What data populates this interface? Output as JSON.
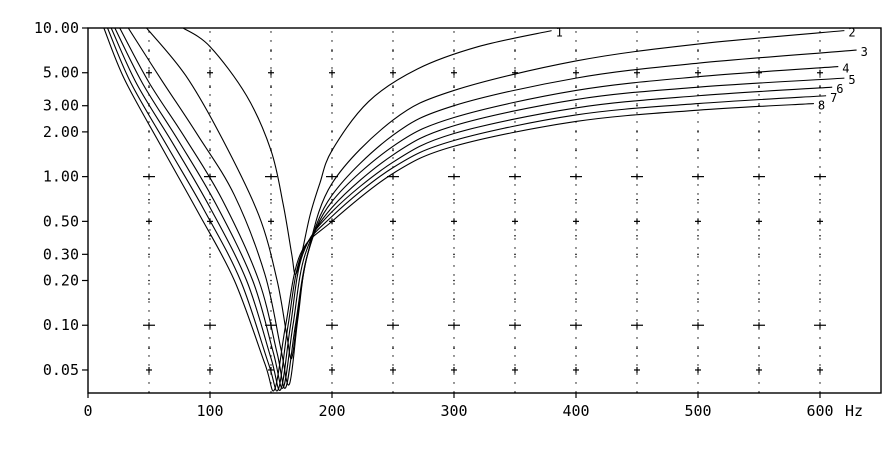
{
  "chart_data": {
    "type": "line",
    "title": "",
    "xlabel": "",
    "ylabel": "",
    "x_unit": "Hz",
    "xlim": [
      0,
      650
    ],
    "ylim": [
      0.035,
      10
    ],
    "y_scale": "log",
    "grid": "dotted",
    "x_ticks": [
      0,
      100,
      200,
      300,
      400,
      500,
      600
    ],
    "x_tick_labels": [
      "0",
      "100",
      "200",
      "300",
      "400",
      "500",
      "600"
    ],
    "y_ticks": [
      10,
      5,
      3,
      2,
      1,
      0.5,
      0.3,
      0.2,
      0.1,
      0.05
    ],
    "y_tick_labels": [
      "10.00",
      "5.00",
      "3.00",
      "2.00",
      "1.00",
      "0.50",
      "0.30",
      "0.20",
      "0.10",
      "0.05"
    ],
    "series": [
      {
        "name": "1",
        "x": [
          78,
          100,
          130,
          150,
          160,
          167,
          170,
          175,
          182,
          190,
          200,
          230,
          270,
          320,
          380
        ],
        "y": [
          10,
          7.5,
          3.5,
          1.5,
          0.65,
          0.3,
          0.22,
          0.3,
          0.55,
          0.9,
          1.5,
          3.2,
          5.3,
          7.5,
          9.6
        ]
      },
      {
        "name": "2",
        "x": [
          48,
          80,
          110,
          140,
          155,
          163,
          167,
          172,
          180,
          200,
          250,
          300,
          400,
          500,
          620
        ],
        "y": [
          10,
          4.8,
          1.8,
          0.55,
          0.2,
          0.085,
          0.06,
          0.12,
          0.3,
          0.9,
          2.4,
          3.8,
          6.0,
          7.8,
          9.6
        ]
      },
      {
        "name": "3",
        "x": [
          33,
          60,
          90,
          120,
          145,
          158,
          165,
          172,
          180,
          200,
          250,
          300,
          400,
          500,
          630
        ],
        "y": [
          10,
          4.5,
          1.9,
          0.75,
          0.22,
          0.07,
          0.04,
          0.11,
          0.3,
          0.75,
          1.9,
          3.0,
          4.6,
          5.8,
          7.1
        ]
      },
      {
        "name": "4",
        "x": [
          26,
          50,
          80,
          110,
          140,
          155,
          162,
          170,
          180,
          200,
          250,
          300,
          400,
          500,
          615
        ],
        "y": [
          10,
          4.3,
          1.8,
          0.7,
          0.2,
          0.065,
          0.038,
          0.1,
          0.3,
          0.68,
          1.6,
          2.5,
          3.8,
          4.7,
          5.5
        ]
      },
      {
        "name": "5",
        "x": [
          22,
          45,
          75,
          105,
          135,
          152,
          160,
          168,
          178,
          200,
          250,
          300,
          400,
          500,
          620
        ],
        "y": [
          10,
          4.2,
          1.7,
          0.65,
          0.2,
          0.065,
          0.038,
          0.1,
          0.3,
          0.62,
          1.4,
          2.2,
          3.3,
          4.0,
          4.6
        ]
      },
      {
        "name": "6",
        "x": [
          19,
          40,
          70,
          100,
          130,
          150,
          158,
          166,
          176,
          200,
          250,
          300,
          400,
          500,
          610
        ],
        "y": [
          10,
          4.2,
          1.65,
          0.62,
          0.2,
          0.06,
          0.037,
          0.1,
          0.3,
          0.58,
          1.25,
          1.95,
          2.9,
          3.5,
          4.0
        ]
      },
      {
        "name": "7",
        "x": [
          16,
          35,
          65,
          95,
          125,
          148,
          156,
          164,
          175,
          200,
          250,
          300,
          400,
          500,
          605
        ],
        "y": [
          10,
          4.3,
          1.6,
          0.6,
          0.2,
          0.055,
          0.037,
          0.1,
          0.3,
          0.54,
          1.15,
          1.75,
          2.6,
          3.1,
          3.5
        ]
      },
      {
        "name": "8",
        "x": [
          13,
          30,
          60,
          90,
          120,
          145,
          153,
          162,
          174,
          200,
          250,
          300,
          400,
          500,
          595
        ],
        "y": [
          10,
          4.5,
          1.6,
          0.58,
          0.2,
          0.055,
          0.037,
          0.1,
          0.3,
          0.5,
          1.05,
          1.6,
          2.35,
          2.8,
          3.1
        ]
      }
    ]
  }
}
